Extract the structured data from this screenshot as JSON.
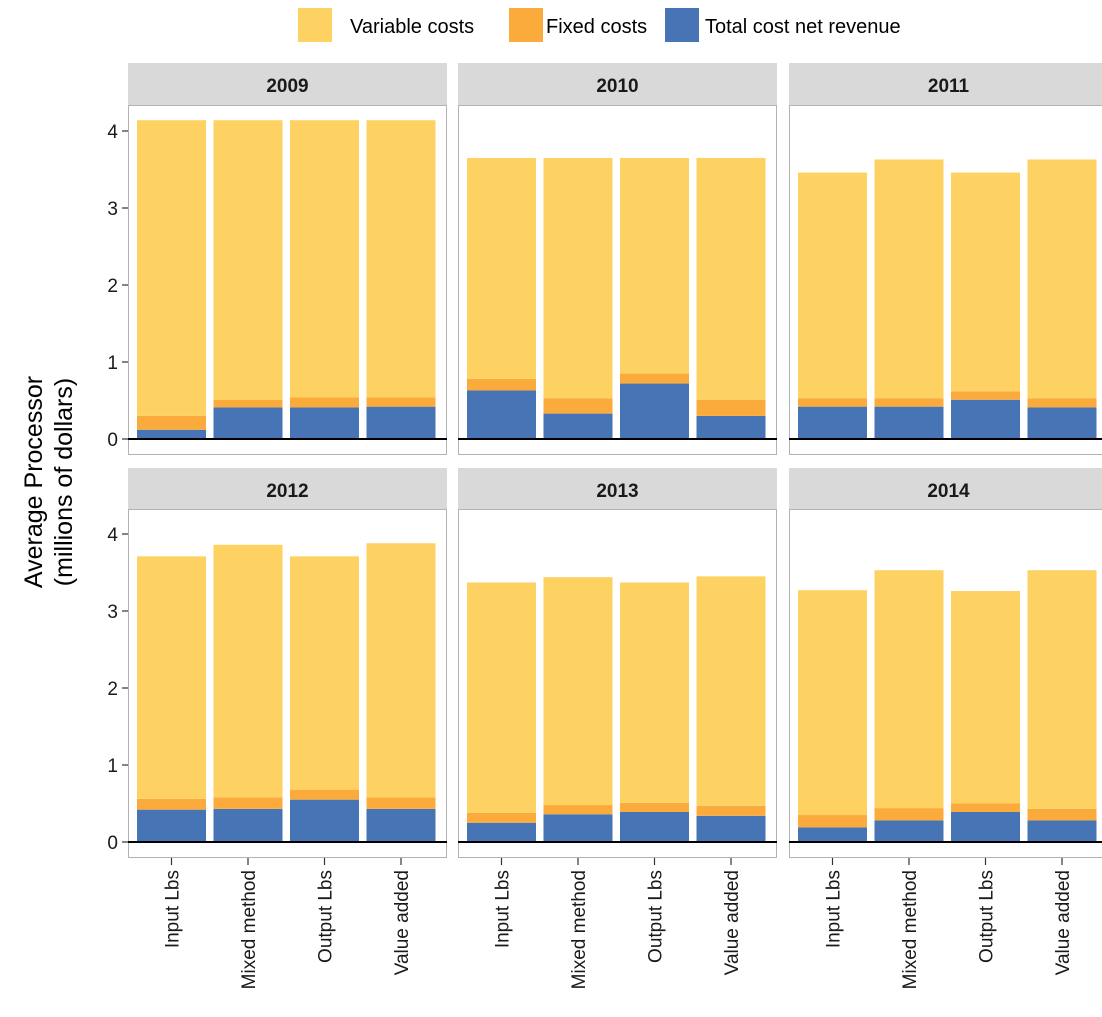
{
  "chart_data": {
    "type": "bar",
    "stacked": true,
    "ylabel_lines": [
      "Average Processor",
      "(millions of dollars)"
    ],
    "xlabel": "",
    "ylim": [
      0,
      4.2
    ],
    "yticks": [
      0,
      1,
      2,
      3,
      4
    ],
    "grid": false,
    "legend_position": "top",
    "categories": [
      "Input Lbs",
      "Mixed method",
      "Output Lbs",
      "Value added"
    ],
    "legend": [
      {
        "key": "variable",
        "label": "Variable  costs",
        "color": "#FDD262"
      },
      {
        "key": "fixed",
        "label": "Fixed costs",
        "color": "#FBAB3B"
      },
      {
        "key": "revenue",
        "label": "Total cost net revenue",
        "color": "#4674B4"
      }
    ],
    "panels": [
      {
        "title": "2009",
        "series": [
          {
            "name": "Total cost net revenue",
            "values": [
              0.12,
              0.41,
              0.41,
              0.42
            ]
          },
          {
            "name": "Fixed costs",
            "values": [
              0.18,
              0.1,
              0.13,
              0.12
            ]
          },
          {
            "name": "Variable  costs",
            "values": [
              3.84,
              3.63,
              3.6,
              3.6
            ]
          }
        ]
      },
      {
        "title": "2010",
        "series": [
          {
            "name": "Total cost net revenue",
            "values": [
              0.63,
              0.33,
              0.72,
              0.3
            ]
          },
          {
            "name": "Fixed costs",
            "values": [
              0.15,
              0.2,
              0.13,
              0.21
            ]
          },
          {
            "name": "Variable  costs",
            "values": [
              2.87,
              3.12,
              2.8,
              3.14
            ]
          }
        ]
      },
      {
        "title": "2011",
        "series": [
          {
            "name": "Total cost net revenue",
            "values": [
              0.42,
              0.42,
              0.51,
              0.41
            ]
          },
          {
            "name": "Fixed costs",
            "values": [
              0.11,
              0.11,
              0.11,
              0.12
            ]
          },
          {
            "name": "Variable  costs",
            "values": [
              2.93,
              3.1,
              2.84,
              3.1
            ]
          }
        ]
      },
      {
        "title": "2012",
        "series": [
          {
            "name": "Total cost net revenue",
            "values": [
              0.42,
              0.43,
              0.55,
              0.43
            ]
          },
          {
            "name": "Fixed costs",
            "values": [
              0.14,
              0.15,
              0.13,
              0.15
            ]
          },
          {
            "name": "Variable  costs",
            "values": [
              3.15,
              3.28,
              3.03,
              3.3
            ]
          }
        ]
      },
      {
        "title": "2013",
        "series": [
          {
            "name": "Total cost net revenue",
            "values": [
              0.25,
              0.36,
              0.39,
              0.34
            ]
          },
          {
            "name": "Fixed costs",
            "values": [
              0.13,
              0.12,
              0.12,
              0.13
            ]
          },
          {
            "name": "Variable  costs",
            "values": [
              2.99,
              2.96,
              2.86,
              2.98
            ]
          }
        ]
      },
      {
        "title": "2014",
        "series": [
          {
            "name": "Total cost net revenue",
            "values": [
              0.19,
              0.28,
              0.39,
              0.28
            ]
          },
          {
            "name": "Fixed costs",
            "values": [
              0.16,
              0.16,
              0.11,
              0.15
            ]
          },
          {
            "name": "Variable  costs",
            "values": [
              2.92,
              3.09,
              2.76,
              3.1
            ]
          }
        ]
      }
    ]
  }
}
